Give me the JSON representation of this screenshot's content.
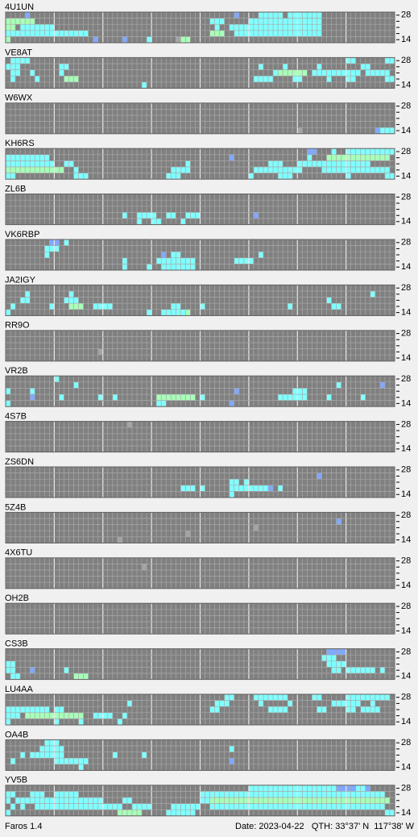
{
  "panels": [
    {
      "call": "4U1UN",
      "runs": [
        [
          0,
          4,
          1,
          2
        ],
        [
          0,
          47,
          1,
          2
        ],
        [
          0,
          52,
          5,
          3
        ],
        [
          0,
          58,
          7,
          3
        ],
        [
          1,
          0,
          6,
          4
        ],
        [
          1,
          42,
          3,
          3
        ],
        [
          1,
          50,
          15,
          3
        ],
        [
          2,
          0,
          2,
          4
        ],
        [
          2,
          3,
          7,
          3
        ],
        [
          2,
          43,
          1,
          3
        ],
        [
          2,
          46,
          19,
          3
        ],
        [
          3,
          0,
          17,
          3
        ],
        [
          3,
          42,
          3,
          4
        ],
        [
          3,
          47,
          18,
          3
        ],
        [
          4,
          0,
          1,
          4
        ],
        [
          4,
          18,
          1,
          2
        ],
        [
          4,
          24,
          1,
          2
        ],
        [
          4,
          29,
          1,
          3
        ],
        [
          4,
          35,
          1,
          1
        ],
        [
          4,
          36,
          2,
          4
        ]
      ]
    },
    {
      "call": "VE8AT",
      "runs": [
        [
          0,
          1,
          4,
          3
        ],
        [
          0,
          70,
          2,
          3
        ],
        [
          0,
          78,
          2,
          3
        ],
        [
          1,
          0,
          3,
          3
        ],
        [
          1,
          11,
          2,
          3
        ],
        [
          1,
          52,
          1,
          3
        ],
        [
          1,
          57,
          1,
          3
        ],
        [
          1,
          64,
          1,
          3
        ],
        [
          1,
          73,
          2,
          3
        ],
        [
          2,
          1,
          2,
          3
        ],
        [
          2,
          5,
          1,
          3
        ],
        [
          2,
          11,
          1,
          3
        ],
        [
          2,
          55,
          1,
          3
        ],
        [
          2,
          56,
          6,
          4
        ],
        [
          2,
          63,
          10,
          3
        ],
        [
          2,
          74,
          5,
          3
        ],
        [
          3,
          1,
          1,
          3
        ],
        [
          3,
          6,
          1,
          3
        ],
        [
          3,
          12,
          3,
          4
        ],
        [
          3,
          51,
          4,
          3
        ],
        [
          3,
          59,
          2,
          3
        ],
        [
          3,
          66,
          1,
          3
        ],
        [
          3,
          70,
          2,
          3
        ],
        [
          3,
          78,
          2,
          3
        ],
        [
          4,
          28,
          1,
          3
        ]
      ]
    },
    {
      "call": "W6WX",
      "runs": [
        [
          4,
          60,
          1,
          1
        ],
        [
          4,
          76,
          1,
          2
        ],
        [
          4,
          77,
          3,
          3
        ]
      ]
    },
    {
      "call": "KH6RS",
      "runs": [
        [
          0,
          62,
          2,
          2
        ],
        [
          0,
          67,
          1,
          3
        ],
        [
          0,
          70,
          10,
          3
        ],
        [
          1,
          0,
          9,
          3
        ],
        [
          1,
          46,
          1,
          2
        ],
        [
          1,
          62,
          1,
          3
        ],
        [
          1,
          66,
          13,
          4
        ],
        [
          2,
          0,
          10,
          3
        ],
        [
          2,
          12,
          2,
          3
        ],
        [
          2,
          37,
          1,
          3
        ],
        [
          2,
          54,
          3,
          3
        ],
        [
          2,
          60,
          15,
          3
        ],
        [
          3,
          0,
          12,
          4
        ],
        [
          3,
          14,
          1,
          3
        ],
        [
          3,
          34,
          4,
          3
        ],
        [
          3,
          51,
          10,
          3
        ],
        [
          3,
          65,
          14,
          3
        ],
        [
          4,
          0,
          2,
          3
        ],
        [
          4,
          14,
          3,
          3
        ],
        [
          4,
          33,
          3,
          3
        ],
        [
          4,
          50,
          1,
          3
        ],
        [
          4,
          56,
          3,
          3
        ],
        [
          4,
          70,
          1,
          3
        ],
        [
          4,
          78,
          2,
          3
        ]
      ]
    },
    {
      "call": "ZL6B",
      "runs": [
        [
          3,
          24,
          1,
          3
        ],
        [
          3,
          27,
          3,
          3
        ],
        [
          3,
          30,
          1,
          3
        ],
        [
          3,
          33,
          2,
          3
        ],
        [
          3,
          37,
          3,
          3
        ],
        [
          3,
          51,
          1,
          2
        ],
        [
          4,
          27,
          1,
          3
        ],
        [
          4,
          30,
          2,
          3
        ],
        [
          4,
          36,
          1,
          3
        ]
      ]
    },
    {
      "call": "VK6RBP",
      "runs": [
        [
          0,
          9,
          2,
          2
        ],
        [
          0,
          12,
          1,
          3
        ],
        [
          1,
          8,
          3,
          3
        ],
        [
          2,
          8,
          1,
          3
        ],
        [
          2,
          32,
          1,
          2
        ],
        [
          2,
          34,
          2,
          3
        ],
        [
          2,
          52,
          1,
          3
        ],
        [
          3,
          24,
          1,
          3
        ],
        [
          3,
          31,
          8,
          3
        ],
        [
          3,
          47,
          4,
          3
        ],
        [
          4,
          24,
          1,
          3
        ],
        [
          4,
          29,
          1,
          3
        ],
        [
          4,
          32,
          7,
          3
        ]
      ]
    },
    {
      "call": "JA2IGY",
      "runs": [
        [
          1,
          4,
          1,
          3
        ],
        [
          1,
          13,
          1,
          3
        ],
        [
          1,
          75,
          1,
          3
        ],
        [
          2,
          3,
          2,
          3
        ],
        [
          2,
          12,
          3,
          3
        ],
        [
          2,
          66,
          1,
          3
        ],
        [
          3,
          1,
          1,
          3
        ],
        [
          3,
          9,
          1,
          3
        ],
        [
          3,
          13,
          3,
          4
        ],
        [
          3,
          18,
          4,
          3
        ],
        [
          3,
          34,
          2,
          3
        ],
        [
          3,
          40,
          1,
          3
        ],
        [
          3,
          58,
          1,
          3
        ],
        [
          3,
          67,
          2,
          3
        ],
        [
          4,
          0,
          1,
          3
        ],
        [
          4,
          29,
          1,
          3
        ],
        [
          4,
          32,
          6,
          3
        ],
        [
          4,
          37,
          1,
          4
        ]
      ]
    },
    {
      "call": "RR9O",
      "runs": [
        [
          3,
          19,
          1,
          1
        ]
      ]
    },
    {
      "call": "VR2B",
      "runs": [
        [
          0,
          10,
          1,
          3
        ],
        [
          1,
          14,
          1,
          3
        ],
        [
          1,
          68,
          1,
          3
        ],
        [
          1,
          77,
          1,
          2
        ],
        [
          2,
          0,
          1,
          3
        ],
        [
          2,
          5,
          1,
          3
        ],
        [
          2,
          47,
          1,
          2
        ],
        [
          2,
          59,
          3,
          3
        ],
        [
          3,
          5,
          1,
          2
        ],
        [
          3,
          11,
          1,
          3
        ],
        [
          3,
          19,
          1,
          3
        ],
        [
          3,
          22,
          1,
          3
        ],
        [
          3,
          31,
          8,
          4
        ],
        [
          3,
          40,
          1,
          3
        ],
        [
          3,
          56,
          6,
          3
        ],
        [
          3,
          66,
          1,
          3
        ],
        [
          3,
          73,
          1,
          3
        ],
        [
          4,
          0,
          1,
          3
        ],
        [
          4,
          31,
          2,
          3
        ],
        [
          4,
          46,
          1,
          2
        ]
      ]
    },
    {
      "call": "4S7B",
      "runs": [
        [
          0,
          25,
          1,
          1
        ]
      ]
    },
    {
      "call": "ZS6DN",
      "runs": [
        [
          1,
          64,
          1,
          2
        ],
        [
          2,
          46,
          2,
          3
        ],
        [
          2,
          49,
          1,
          3
        ],
        [
          3,
          36,
          3,
          3
        ],
        [
          3,
          40,
          1,
          3
        ],
        [
          3,
          46,
          8,
          3
        ],
        [
          3,
          54,
          1,
          2
        ],
        [
          3,
          56,
          1,
          3
        ],
        [
          4,
          46,
          1,
          3
        ]
      ]
    },
    {
      "call": "5Z4B",
      "runs": [
        [
          1,
          68,
          1,
          2
        ],
        [
          2,
          51,
          1,
          1
        ],
        [
          3,
          37,
          1,
          1
        ],
        [
          4,
          23,
          1,
          1
        ]
      ]
    },
    {
      "call": "4X6TU",
      "runs": [
        [
          1,
          28,
          1,
          1
        ]
      ]
    },
    {
      "call": "OH2B",
      "runs": []
    },
    {
      "call": "CS3B",
      "runs": [
        [
          0,
          66,
          4,
          2
        ],
        [
          1,
          65,
          3,
          3
        ],
        [
          2,
          0,
          2,
          3
        ],
        [
          2,
          66,
          4,
          3
        ],
        [
          3,
          0,
          2,
          3
        ],
        [
          3,
          5,
          1,
          2
        ],
        [
          3,
          12,
          1,
          3
        ],
        [
          3,
          67,
          2,
          3
        ],
        [
          3,
          70,
          6,
          3
        ],
        [
          3,
          77,
          1,
          3
        ],
        [
          4,
          1,
          2,
          3
        ],
        [
          4,
          14,
          3,
          4
        ]
      ]
    },
    {
      "call": "LU4AA",
      "runs": [
        [
          0,
          45,
          2,
          3
        ],
        [
          0,
          51,
          7,
          3
        ],
        [
          0,
          63,
          2,
          3
        ],
        [
          0,
          70,
          9,
          3
        ],
        [
          1,
          25,
          1,
          3
        ],
        [
          1,
          43,
          3,
          3
        ],
        [
          1,
          52,
          1,
          3
        ],
        [
          1,
          58,
          1,
          3
        ],
        [
          1,
          67,
          6,
          3
        ],
        [
          1,
          75,
          1,
          3
        ],
        [
          2,
          0,
          9,
          3
        ],
        [
          2,
          10,
          2,
          3
        ],
        [
          2,
          42,
          2,
          3
        ],
        [
          2,
          54,
          4,
          3
        ],
        [
          2,
          64,
          2,
          3
        ],
        [
          2,
          70,
          2,
          3
        ],
        [
          2,
          73,
          4,
          3
        ],
        [
          3,
          0,
          3,
          3
        ],
        [
          3,
          4,
          12,
          4
        ],
        [
          3,
          18,
          4,
          3
        ],
        [
          3,
          24,
          1,
          3
        ],
        [
          4,
          0,
          1,
          3
        ],
        [
          4,
          10,
          1,
          3
        ],
        [
          4,
          15,
          1,
          3
        ],
        [
          4,
          23,
          1,
          3
        ]
      ]
    },
    {
      "call": "OA4B",
      "runs": [
        [
          0,
          8,
          3,
          3
        ],
        [
          1,
          7,
          5,
          3
        ],
        [
          1,
          46,
          1,
          3
        ],
        [
          2,
          3,
          1,
          3
        ],
        [
          2,
          5,
          4,
          3
        ],
        [
          2,
          9,
          3,
          3
        ],
        [
          2,
          22,
          1,
          3
        ],
        [
          2,
          28,
          1,
          3
        ],
        [
          3,
          1,
          1,
          3
        ],
        [
          3,
          10,
          7,
          3
        ],
        [
          3,
          46,
          1,
          2
        ],
        [
          4,
          15,
          1,
          3
        ]
      ]
    },
    {
      "call": "YV5B",
      "runs": [
        [
          0,
          50,
          25,
          3
        ],
        [
          0,
          68,
          4,
          2
        ],
        [
          0,
          74,
          1,
          2
        ],
        [
          1,
          0,
          2,
          3
        ],
        [
          1,
          5,
          3,
          3
        ],
        [
          1,
          10,
          5,
          3
        ],
        [
          1,
          40,
          38,
          3
        ],
        [
          2,
          0,
          1,
          3
        ],
        [
          2,
          2,
          18,
          3
        ],
        [
          2,
          24,
          2,
          3
        ],
        [
          2,
          40,
          2,
          3
        ],
        [
          2,
          42,
          37,
          4
        ],
        [
          3,
          1,
          1,
          3
        ],
        [
          3,
          3,
          1,
          3
        ],
        [
          3,
          6,
          18,
          3
        ],
        [
          3,
          26,
          4,
          3
        ],
        [
          3,
          34,
          6,
          3
        ],
        [
          3,
          42,
          36,
          3
        ],
        [
          4,
          0,
          1,
          3
        ],
        [
          4,
          23,
          5,
          4
        ],
        [
          4,
          33,
          5,
          3
        ],
        [
          4,
          37,
          2,
          3
        ],
        [
          4,
          78,
          2,
          3
        ]
      ]
    }
  ],
  "band_top": 28,
  "band_bottom": 14,
  "level_colors": {
    "1": "#a4a4a4",
    "2": "#80a8ff",
    "3": "#80ffff",
    "4": "#a8ffb8"
  },
  "footer": {
    "app": "Faros 1.4",
    "date": "Date: 2023-04-22",
    "qth": "QTH: 33°37' N  117°38' W"
  }
}
